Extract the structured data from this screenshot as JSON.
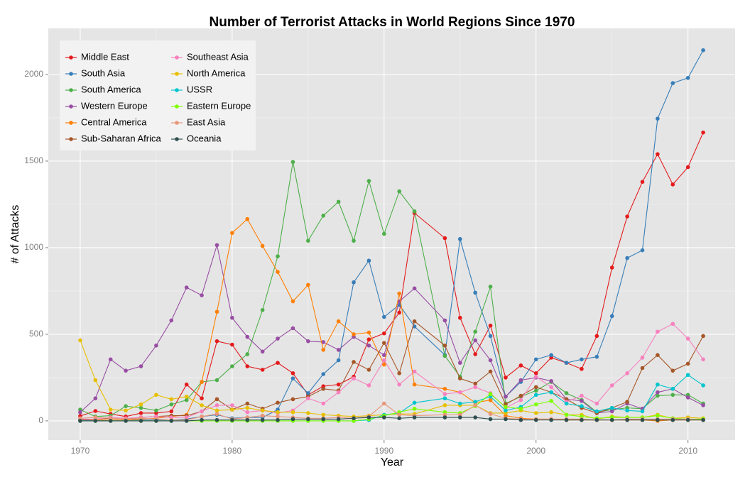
{
  "chart_data": {
    "type": "line",
    "title": "Number of Terrorist Attacks in World Regions Since 1970",
    "x_label": "Year",
    "y_label": "# of Attacks",
    "x": [
      1970,
      1971,
      1972,
      1973,
      1974,
      1975,
      1976,
      1977,
      1978,
      1979,
      1980,
      1981,
      1982,
      1983,
      1984,
      1985,
      1986,
      1987,
      1988,
      1989,
      1990,
      1991,
      1992,
      1994,
      1995,
      1996,
      1997,
      1998,
      1999,
      2000,
      2001,
      2002,
      2003,
      2004,
      2005,
      2006,
      2007,
      2008,
      2009,
      2010,
      2011
    ],
    "xlim": [
      1967.9,
      2013.1
    ],
    "xticks": [
      1970,
      1980,
      1990,
      2000,
      2010
    ],
    "ylim": [
      -111,
      2266
    ],
    "yticks": [
      0,
      500,
      1000,
      1500,
      2000
    ],
    "grid": true,
    "legend": "top-left",
    "series": [
      {
        "name": "Middle East",
        "color": "#e41a1c",
        "values": [
          28,
          57,
          40,
          25,
          45,
          45,
          55,
          210,
          130,
          460,
          440,
          315,
          295,
          335,
          275,
          150,
          200,
          210,
          255,
          470,
          505,
          625,
          1200,
          1055,
          595,
          385,
          550,
          250,
          320,
          275,
          365,
          335,
          300,
          490,
          885,
          1180,
          1380,
          1540,
          1365,
          1465,
          1665
        ]
      },
      {
        "name": "South Asia",
        "color": "#377eb8",
        "values": [
          5,
          3,
          5,
          5,
          5,
          5,
          5,
          10,
          25,
          35,
          15,
          20,
          20,
          65,
          245,
          160,
          270,
          350,
          800,
          925,
          600,
          670,
          545,
          380,
          1050,
          740,
          490,
          140,
          225,
          355,
          380,
          335,
          355,
          370,
          605,
          940,
          985,
          1745,
          1950,
          1980,
          2140
        ]
      },
      {
        "name": "South America",
        "color": "#4daf4a",
        "values": [
          65,
          25,
          30,
          85,
          75,
          60,
          95,
          120,
          225,
          235,
          315,
          385,
          640,
          950,
          1495,
          1040,
          1185,
          1265,
          1040,
          1385,
          1080,
          1325,
          1210,
          375,
          255,
          515,
          775,
          100,
          140,
          175,
          225,
          160,
          120,
          50,
          65,
          75,
          70,
          145,
          150,
          150,
          100
        ]
      },
      {
        "name": "Western Europe",
        "color": "#984ea3",
        "values": [
          50,
          130,
          355,
          290,
          315,
          435,
          580,
          770,
          725,
          1015,
          595,
          485,
          400,
          475,
          535,
          460,
          455,
          410,
          485,
          435,
          380,
          690,
          765,
          580,
          335,
          465,
          350,
          140,
          235,
          250,
          230,
          125,
          115,
          45,
          55,
          100,
          70,
          165,
          185,
          135,
          90
        ]
      },
      {
        "name": "Central America",
        "color": "#ff7f00",
        "values": [
          10,
          5,
          5,
          5,
          10,
          15,
          25,
          35,
          225,
          630,
          1085,
          1165,
          1010,
          860,
          690,
          785,
          410,
          575,
          500,
          510,
          325,
          735,
          210,
          185,
          165,
          105,
          120,
          30,
          15,
          10,
          10,
          5,
          5,
          5,
          5,
          5,
          5,
          0,
          5,
          5,
          5
        ]
      },
      {
        "name": "Sub-Saharan Africa",
        "color": "#a65628",
        "values": [
          5,
          10,
          15,
          10,
          20,
          25,
          30,
          30,
          55,
          125,
          65,
          100,
          70,
          105,
          125,
          140,
          185,
          175,
          340,
          295,
          450,
          275,
          575,
          435,
          245,
          215,
          285,
          95,
          145,
          195,
          165,
          125,
          75,
          45,
          75,
          110,
          305,
          380,
          290,
          330,
          490
        ]
      },
      {
        "name": "Southeast Asia",
        "color": "#f781bf",
        "values": [
          10,
          10,
          20,
          15,
          20,
          25,
          20,
          20,
          55,
          90,
          90,
          50,
          60,
          45,
          60,
          130,
          100,
          165,
          245,
          205,
          350,
          210,
          285,
          155,
          165,
          195,
          160,
          75,
          120,
          255,
          195,
          110,
          145,
          100,
          205,
          275,
          365,
          515,
          560,
          475,
          355
        ]
      },
      {
        "name": "North America",
        "color": "#e6c000",
        "values": [
          465,
          235,
          65,
          60,
          95,
          150,
          125,
          140,
          90,
          60,
          65,
          75,
          60,
          50,
          50,
          45,
          35,
          30,
          25,
          30,
          35,
          40,
          40,
          90,
          90,
          90,
          45,
          45,
          60,
          45,
          50,
          35,
          35,
          10,
          25,
          20,
          20,
          35,
          15,
          20,
          15
        ]
      },
      {
        "name": "USSR",
        "color": "#00c5cd",
        "values": [
          0,
          0,
          0,
          0,
          0,
          0,
          0,
          0,
          0,
          0,
          0,
          0,
          0,
          0,
          0,
          0,
          0,
          0,
          0,
          5,
          35,
          45,
          105,
          130,
          100,
          110,
          140,
          60,
          80,
          150,
          165,
          100,
          85,
          55,
          75,
          60,
          55,
          210,
          185,
          265,
          205
        ]
      },
      {
        "name": "Eastern Europe",
        "color": "#7fff00",
        "values": [
          0,
          0,
          0,
          0,
          0,
          0,
          0,
          0,
          0,
          0,
          0,
          0,
          0,
          0,
          0,
          0,
          0,
          0,
          0,
          10,
          30,
          50,
          70,
          50,
          45,
          85,
          155,
          80,
          70,
          95,
          115,
          35,
          25,
          15,
          20,
          20,
          20,
          30,
          15,
          10,
          10
        ]
      },
      {
        "name": "East Asia",
        "color": "#e9967a",
        "values": [
          15,
          20,
          15,
          10,
          15,
          10,
          5,
          5,
          25,
          40,
          10,
          20,
          30,
          25,
          20,
          15,
          15,
          20,
          15,
          25,
          100,
          35,
          30,
          35,
          35,
          90,
          40,
          15,
          10,
          10,
          10,
          10,
          10,
          5,
          5,
          10,
          10,
          10,
          10,
          10,
          5
        ]
      },
      {
        "name": "Oceania",
        "color": "#2f4f4f",
        "values": [
          0,
          0,
          0,
          0,
          0,
          0,
          0,
          0,
          5,
          5,
          5,
          5,
          5,
          5,
          10,
          10,
          10,
          10,
          15,
          20,
          20,
          15,
          20,
          20,
          20,
          20,
          10,
          10,
          5,
          5,
          5,
          5,
          5,
          5,
          5,
          5,
          5,
          5,
          5,
          5,
          5
        ]
      }
    ]
  }
}
